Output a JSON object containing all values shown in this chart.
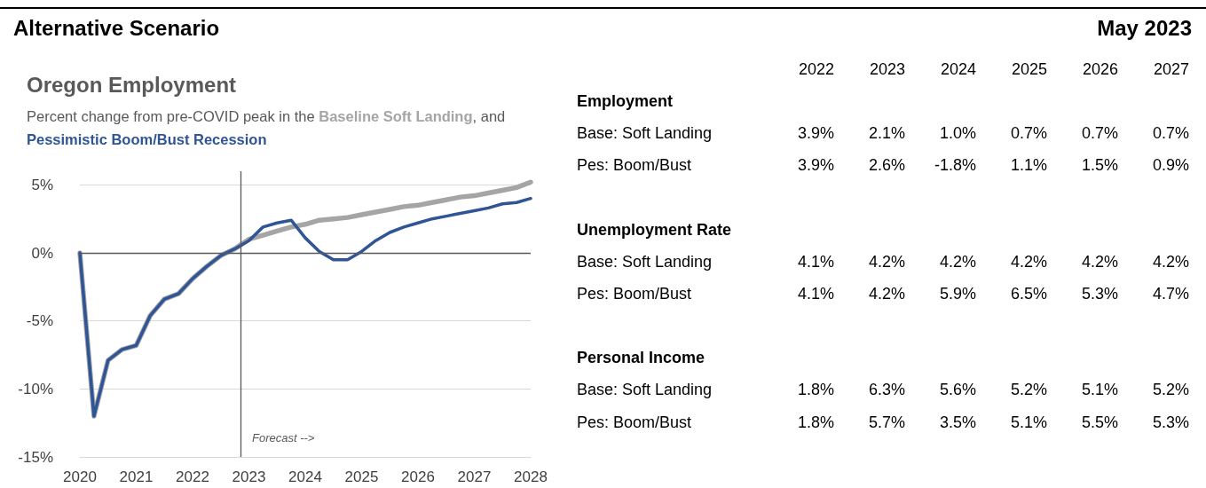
{
  "chart_data": [
    {
      "type": "line",
      "title": "Oregon Employment",
      "subtitle": "Percent change from pre-COVID peak in the",
      "annotations": [
        ", and"
      ],
      "legend": "top",
      "x": [
        2020,
        2020.25,
        2020.5,
        2020.75,
        2021,
        2021.25,
        2021.5,
        2021.75,
        2022,
        2022.25,
        2022.5,
        2022.75,
        2023,
        2023.25,
        2023.5,
        2023.75,
        2024,
        2024.25,
        2024.5,
        2024.75,
        2025,
        2025.25,
        2025.5,
        2025.75,
        2026,
        2026.25,
        2026.5,
        2026.75,
        2027,
        2027.25,
        2027.5,
        2027.75,
        2028
      ],
      "series": [
        {
          "name": "Baseline Soft Landing",
          "color": "#a5a5a5",
          "values": [
            0,
            -12,
            -7.9,
            -7.1,
            -6.8,
            -4.6,
            -3.4,
            -3.0,
            -1.9,
            -1.0,
            -0.2,
            0.3,
            1.0,
            1.3,
            1.6,
            1.9,
            2.1,
            2.4,
            2.5,
            2.6,
            2.8,
            3.0,
            3.2,
            3.4,
            3.5,
            3.7,
            3.9,
            4.1,
            4.2,
            4.4,
            4.6,
            4.8,
            5.2
          ]
        },
        {
          "name": "Pessimistic Boom/Bust Recession",
          "color": "#2f5597",
          "values": [
            0,
            -12,
            -7.9,
            -7.1,
            -6.8,
            -4.6,
            -3.4,
            -3.0,
            -1.9,
            -1.0,
            -0.2,
            0.3,
            0.9,
            1.9,
            2.2,
            2.4,
            1.1,
            0.1,
            -0.5,
            -0.5,
            0.1,
            0.9,
            1.5,
            1.9,
            2.2,
            2.5,
            2.7,
            2.9,
            3.1,
            3.3,
            3.6,
            3.7,
            4.0
          ]
        }
      ],
      "xlim": [
        2020,
        2028
      ],
      "xticks": [
        2020,
        2021,
        2022,
        2023,
        2024,
        2025,
        2026,
        2027,
        2028
      ],
      "ylim": [
        -15,
        6
      ],
      "yticks": [
        {
          "value": -15,
          "label": "-15%"
        },
        {
          "value": -10,
          "label": "-10%"
        },
        {
          "value": -5,
          "label": "-5%"
        },
        {
          "value": 0,
          "label": "0%"
        },
        {
          "value": 5,
          "label": "5%"
        }
      ],
      "grid": "y",
      "marker": "none",
      "line_style": "solid",
      "ref_lines": [
        {
          "axis": "x",
          "value": 2022.85,
          "label": "Forecast -->",
          "color": "#595959"
        },
        {
          "axis": "y",
          "value": 0,
          "color": "#595959"
        }
      ]
    },
    {
      "type": "heatmap",
      "annotations": [
        "Alternative Scenario",
        "May 2023"
      ],
      "categories": [
        "2022",
        "2023",
        "2024",
        "2025",
        "2026",
        "2027"
      ],
      "y_categories": [
        "Employment",
        "Base: Soft Landing",
        "Pes: Boom/Bust",
        "Unemployment Rate",
        "Base: Soft Landing",
        "Pes: Boom/Bust",
        "Personal Income",
        "Base: Soft Landing",
        "Pes: Boom/Bust"
      ],
      "cells": [
        null,
        [
          3.9,
          2.1,
          1.0,
          0.7,
          0.7,
          0.7
        ],
        [
          3.9,
          2.6,
          -1.8,
          1.1,
          1.5,
          0.9
        ],
        null,
        [
          4.1,
          4.2,
          4.2,
          4.2,
          4.2,
          4.2
        ],
        [
          4.1,
          4.2,
          5.9,
          6.5,
          5.3,
          4.7
        ],
        null,
        [
          1.8,
          6.3,
          5.6,
          5.2,
          5.1,
          5.2
        ],
        [
          1.8,
          5.7,
          3.5,
          5.1,
          5.5,
          5.3
        ]
      ],
      "cell_labels": [
        null,
        [
          "3.9%",
          "2.1%",
          "1.0%",
          "0.7%",
          "0.7%",
          "0.7%"
        ],
        [
          "3.9%",
          "2.6%",
          "-1.8%",
          "1.1%",
          "1.5%",
          "0.9%"
        ],
        null,
        [
          "4.1%",
          "4.2%",
          "4.2%",
          "4.2%",
          "4.2%",
          "4.2%"
        ],
        [
          "4.1%",
          "4.2%",
          "5.9%",
          "6.5%",
          "5.3%",
          "4.7%"
        ],
        null,
        [
          "1.8%",
          "6.3%",
          "5.6%",
          "5.2%",
          "5.1%",
          "5.2%"
        ],
        [
          "1.8%",
          "5.7%",
          "3.5%",
          "5.1%",
          "5.5%",
          "5.3%"
        ]
      ]
    }
  ]
}
